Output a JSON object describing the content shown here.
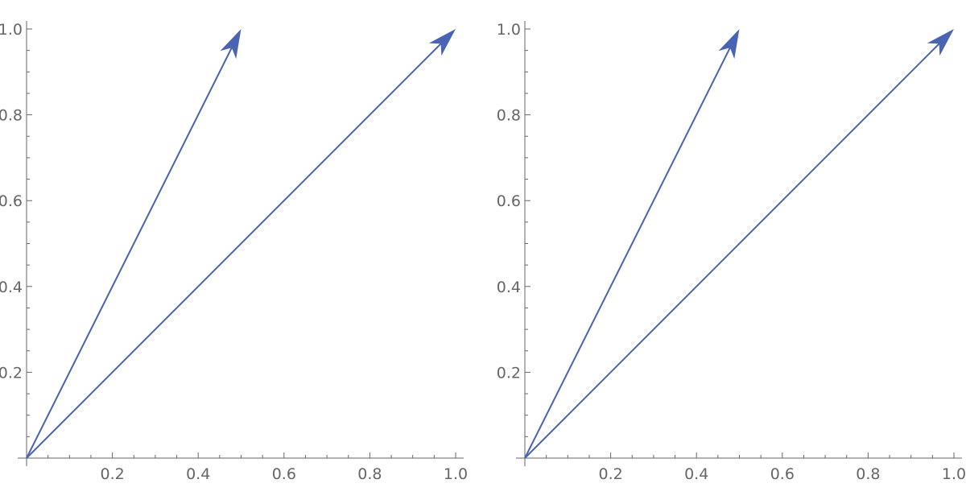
{
  "chart_data": [
    {
      "type": "vector",
      "title": "",
      "xlabel": "",
      "ylabel": "",
      "xlim": [
        0,
        1.0
      ],
      "ylim": [
        0,
        1.0
      ],
      "grid": false,
      "x_ticks": [
        "0.2",
        "0.4",
        "0.6",
        "0.8",
        "1.0"
      ],
      "y_ticks": [
        "0.2",
        "0.4",
        "0.6",
        "0.8",
        "1.0"
      ],
      "vectors": [
        {
          "from": [
            0,
            0
          ],
          "to": [
            0.5,
            1.0
          ]
        },
        {
          "from": [
            0,
            0
          ],
          "to": [
            1.0,
            1.0
          ]
        }
      ]
    },
    {
      "type": "vector",
      "title": "",
      "xlabel": "",
      "ylabel": "",
      "xlim": [
        0,
        1.0
      ],
      "ylim": [
        0,
        1.0
      ],
      "grid": false,
      "x_ticks": [
        "0.2",
        "0.4",
        "0.6",
        "0.8",
        "1.0"
      ],
      "y_ticks": [
        "0.2",
        "0.4",
        "0.6",
        "0.8",
        "1.0"
      ],
      "vectors": [
        {
          "from": [
            0,
            0
          ],
          "to": [
            0.5,
            1.0
          ]
        },
        {
          "from": [
            0,
            0
          ],
          "to": [
            1.0,
            1.0
          ]
        }
      ]
    }
  ],
  "colors": {
    "vector": "#4a63b2",
    "axis": "#666666"
  }
}
